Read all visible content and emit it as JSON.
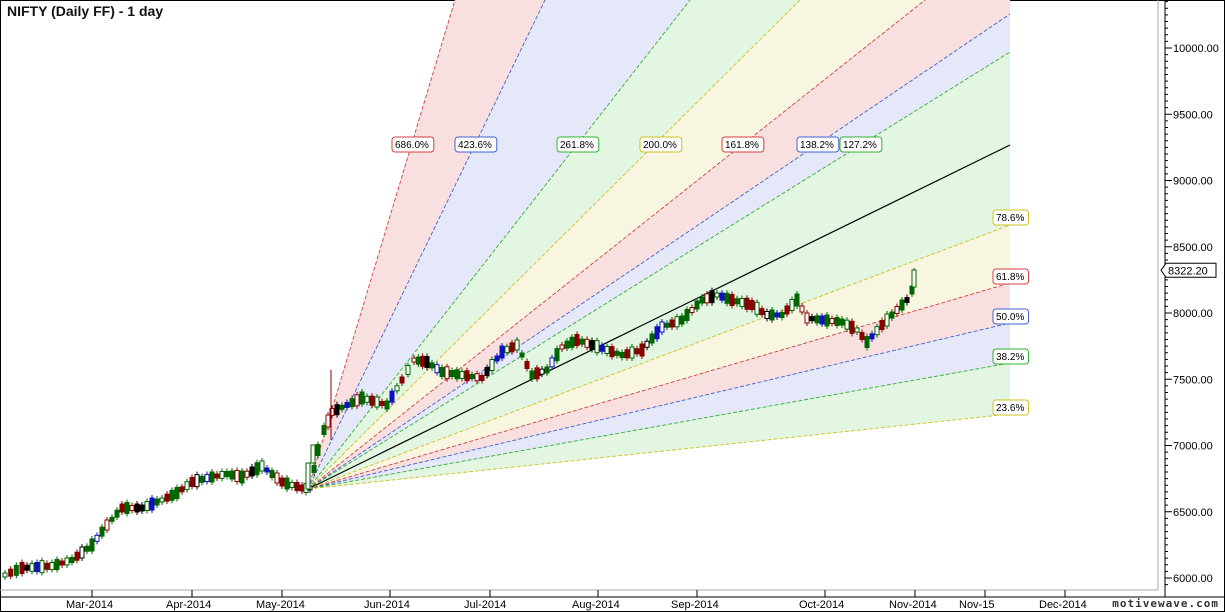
{
  "header": {
    "title": "NIFTY (Daily FF) - 1 day"
  },
  "branding": "motivewave.com",
  "last_price": "8322.20",
  "colors": {
    "up": "#006600",
    "down": "#8b0000",
    "blue": "#1010c0",
    "black": "#000000",
    "fan_red": "#d04040",
    "fan_blue": "#4060d0",
    "fan_green": "#30b030",
    "fan_yellow": "#d0c020"
  },
  "chart_data": {
    "type": "candlestick",
    "title": "NIFTY (Daily FF) - 1 day",
    "xlabel": "",
    "ylabel": "",
    "ylim": [
      5900,
      10400
    ],
    "y_ticks": [
      "6000.00",
      "6500.00",
      "7000.00",
      "7500.00",
      "8000.00",
      "8500.00",
      "9000.00",
      "9500.00",
      "10000.00"
    ],
    "x_ticks": [
      "Mar-2014",
      "Apr-2014",
      "May-2014",
      "Jun-2014",
      "Jul-2014",
      "Aug-2014",
      "Sep-2014",
      "Oct-2014",
      "Nov-2014",
      "Nov-15",
      "Dec-2014"
    ],
    "grid": false,
    "fibonacci_fan": {
      "origin": {
        "date": "May-2014",
        "price": 6640
      },
      "upper_labels": [
        "686.0%",
        "423.6%",
        "261.8%",
        "200.0%",
        "161.8%",
        "138.2%",
        "127.2%"
      ],
      "right_labels": [
        "78.6%",
        "61.8%",
        "50.0%",
        "38.2%",
        "23.6%"
      ]
    },
    "last_value": 8322.2,
    "approx_series": [
      {
        "month": "Feb-2014",
        "close": 6000
      },
      {
        "month": "Mar-2014",
        "close": 6550
      },
      {
        "month": "Apr-2014",
        "close": 6700
      },
      {
        "month": "May-2014",
        "close": 7250
      },
      {
        "month": "Jun-2014",
        "close": 7600
      },
      {
        "month": "Jul-2014",
        "close": 7750
      },
      {
        "month": "Aug-2014",
        "close": 7950
      },
      {
        "month": "Sep-2014",
        "close": 7980
      },
      {
        "month": "Oct-2014",
        "close": 8322.2
      }
    ]
  }
}
